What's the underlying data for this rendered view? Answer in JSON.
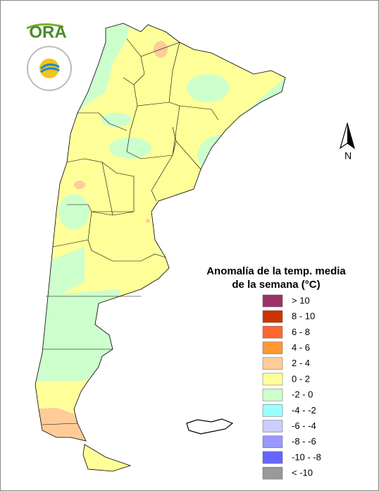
{
  "logo": {
    "text": "ORA"
  },
  "north": "N",
  "legend": {
    "title": [
      "Anomalía de la temp. media",
      "de la semana (°C)"
    ],
    "items": [
      {
        "label": "> 10",
        "color": "#993366"
      },
      {
        "label": "8 - 10",
        "color": "#cc3300"
      },
      {
        "label": "6 - 8",
        "color": "#ff6633"
      },
      {
        "label": "4 - 6",
        "color": "#ff9933"
      },
      {
        "label": "2 - 4",
        "color": "#ffcc99"
      },
      {
        "label": "0 - 2",
        "color": "#ffff99"
      },
      {
        "label": "-2 - 0",
        "color": "#ccffcc"
      },
      {
        "label": "-4 - -2",
        "color": "#99ffff"
      },
      {
        "label": "-6 - -4",
        "color": "#ccccff"
      },
      {
        "label": "-8 - -6",
        "color": "#9999ff"
      },
      {
        "label": "-10 - -8",
        "color": "#6666ff"
      },
      {
        "label": "< -10",
        "color": "#999999"
      }
    ]
  }
}
